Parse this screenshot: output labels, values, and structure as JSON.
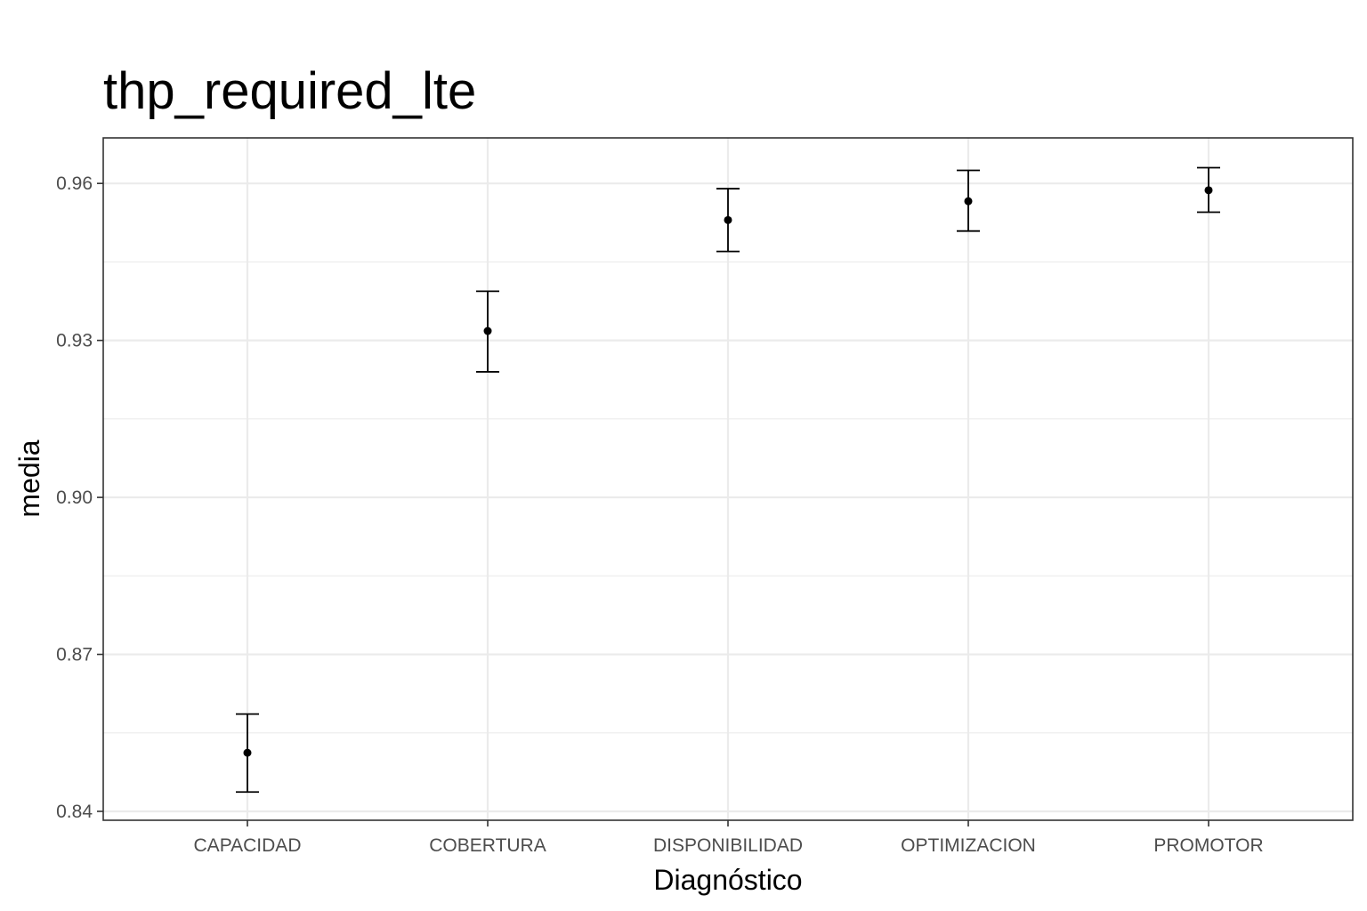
{
  "chart_data": {
    "type": "scatter",
    "title": "thp_required_lte",
    "xlabel": "Diagnóstico",
    "ylabel": "media",
    "categories": [
      "CAPACIDAD",
      "COBERTURA",
      "DISPONIBILIDAD",
      "OPTIMIZACION",
      "PROMOTOR"
    ],
    "series": [
      {
        "name": "media",
        "values": [
          0.8512,
          0.9318,
          0.953,
          0.9566,
          0.9587
        ],
        "lower": [
          0.8437,
          0.924,
          0.947,
          0.9509,
          0.9545
        ],
        "upper": [
          0.8586,
          0.9394,
          0.959,
          0.9625,
          0.963
        ]
      }
    ],
    "ylim": [
      0.8383,
      0.9687
    ],
    "yticks": [
      0.84,
      0.87,
      0.9,
      0.93,
      0.96
    ],
    "ytick_labels": [
      "0.84",
      "0.87",
      "0.90",
      "0.93",
      "0.96"
    ],
    "grid": true,
    "colors": {
      "point": "#000000",
      "grid": "#ebebeb",
      "border": "#333333",
      "tick_text": "#4d4d4d"
    }
  }
}
